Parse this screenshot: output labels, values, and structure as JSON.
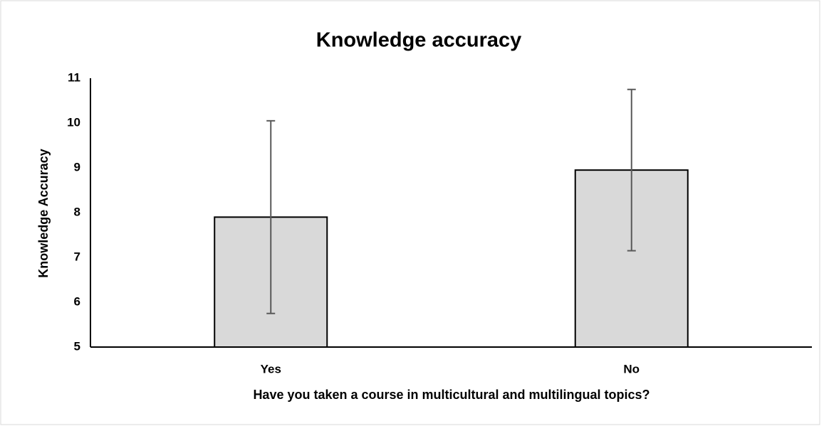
{
  "chart_data": {
    "type": "bar",
    "title": "Knowledge accuracy",
    "x_label": "Have you taken a course in multicultural and multilingual topics?",
    "y_label": "Knowledge Accuracy",
    "categories": [
      "Yes",
      "No"
    ],
    "values": [
      7.9,
      8.95
    ],
    "errors": [
      2.15,
      1.8
    ],
    "color": "#d9d9d9",
    "error_color": "#595959",
    "ylim": [
      5,
      11
    ],
    "yticks": [
      5,
      6,
      7,
      8,
      9,
      10,
      11
    ],
    "grid": false
  }
}
